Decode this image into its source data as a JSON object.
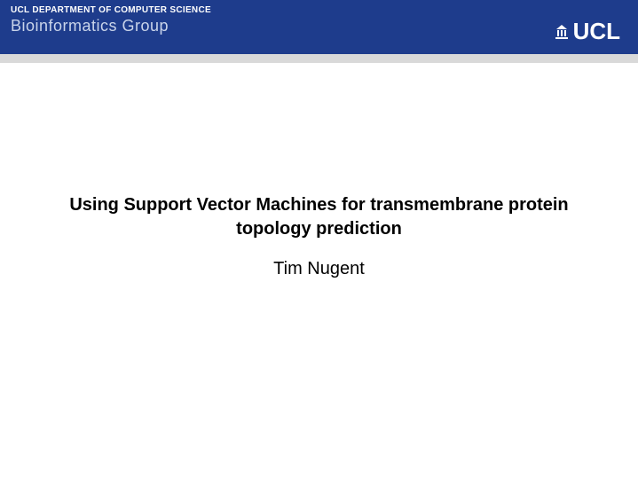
{
  "header": {
    "department": "UCL DEPARTMENT OF COMPUTER SCIENCE",
    "group": "Bioinformatics Group",
    "logo_text": "UCL",
    "band_color": "#1e3c8c",
    "dept_color": "#ffffff",
    "group_color": "#c9d4ea",
    "logo_color": "#ffffff",
    "gray_band_color": "#d9d9d9"
  },
  "content": {
    "title": "Using Support Vector Machines for transmembrane protein topology prediction",
    "author": "Tim Nugent",
    "title_fontsize": 20,
    "title_weight": "bold",
    "author_fontsize": 20,
    "text_color": "#000000",
    "background_color": "#ffffff"
  }
}
